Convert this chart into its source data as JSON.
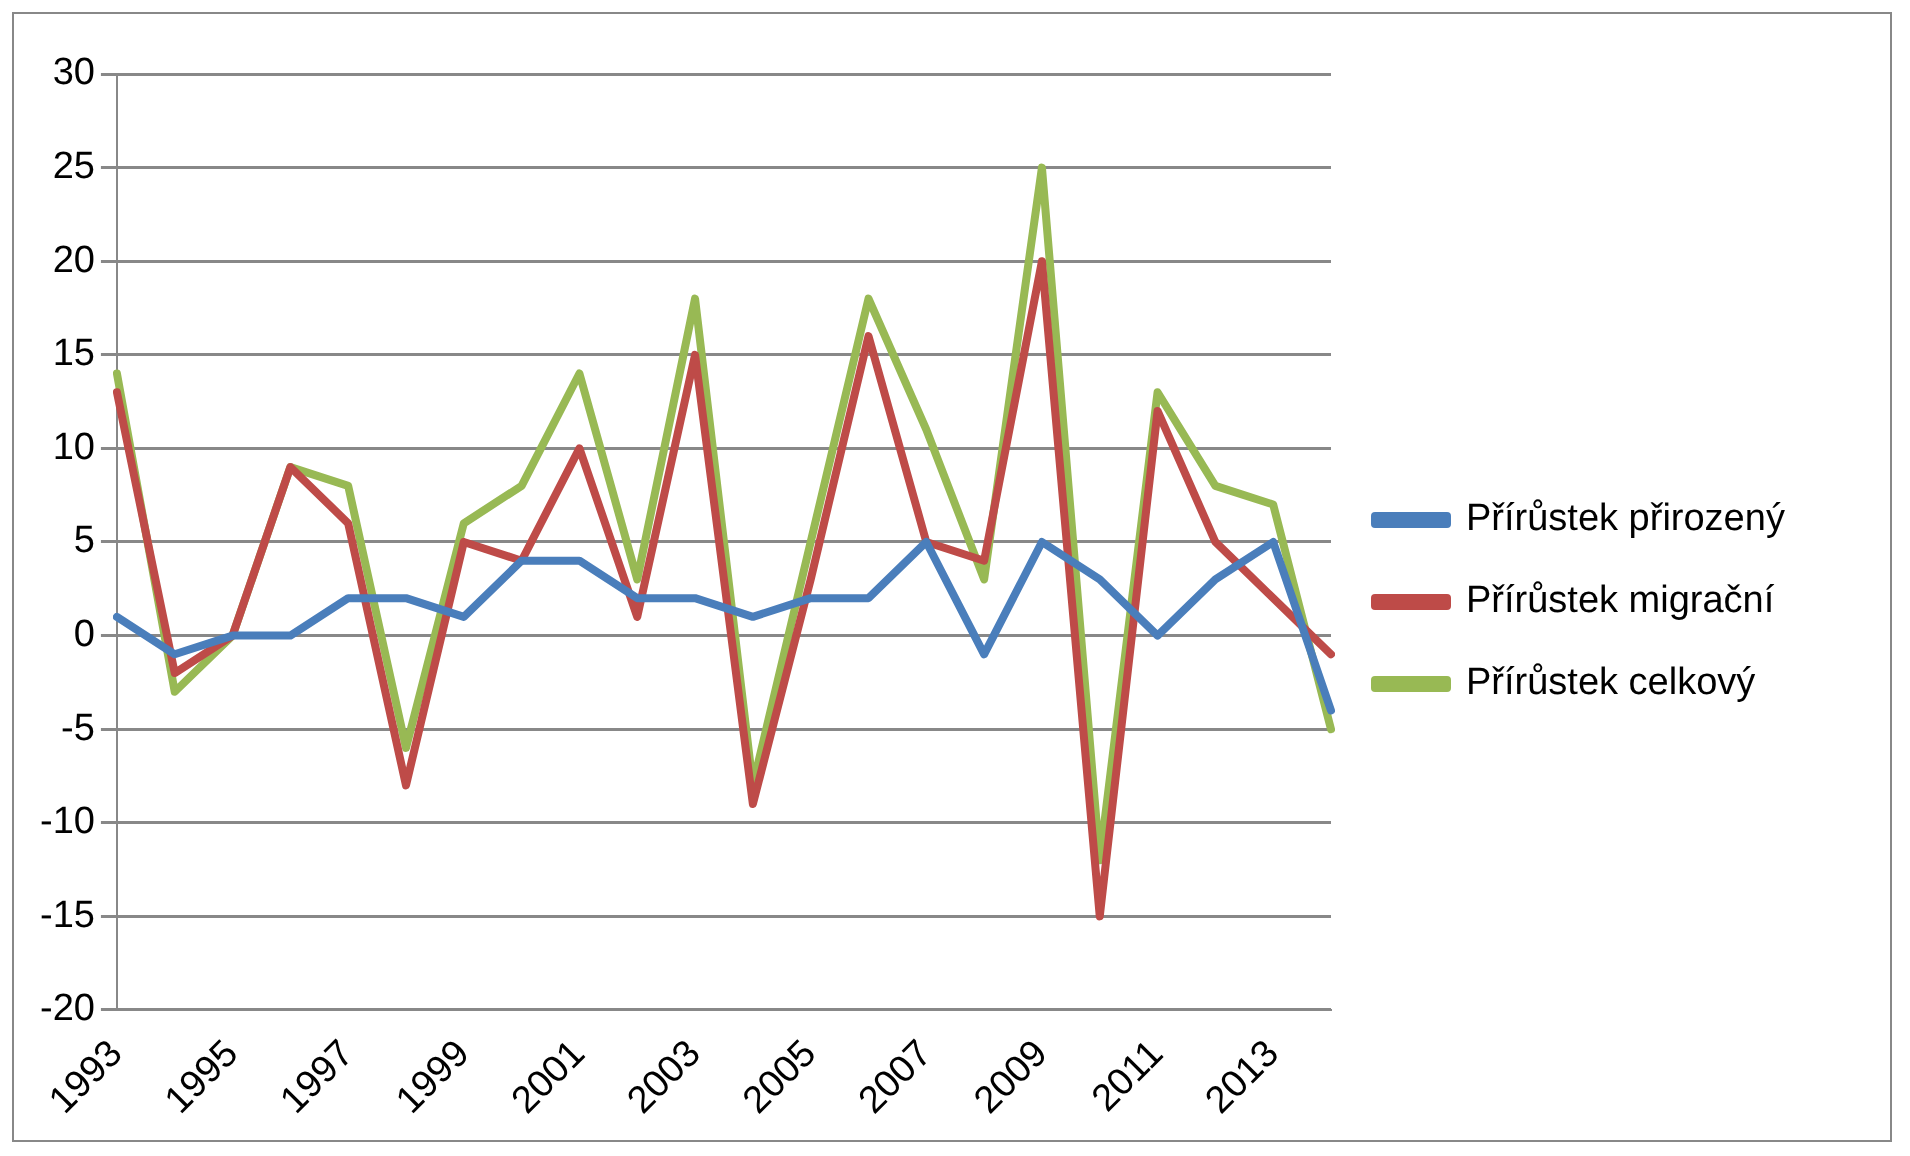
{
  "chart_data": {
    "type": "line",
    "categories": [
      "1993",
      null,
      "1995",
      null,
      "1997",
      null,
      "1999",
      null,
      "2001",
      null,
      "2003",
      null,
      "2005",
      null,
      "2007",
      null,
      "2009",
      null,
      "2011",
      null,
      "2013",
      null
    ],
    "series": [
      {
        "name": "Přírůstek přirozený",
        "color": "#4a7ebb",
        "values": [
          1,
          -1,
          0,
          0,
          2,
          2,
          1,
          4,
          4,
          2,
          2,
          1,
          2,
          2,
          5,
          -1,
          5,
          3,
          0,
          3,
          5,
          -4
        ]
      },
      {
        "name": "Přírůstek migrační",
        "color": "#be4b48",
        "values": [
          13,
          -2,
          0,
          9,
          6,
          -8,
          5,
          4,
          10,
          1,
          15,
          -9,
          3,
          16,
          5,
          4,
          20,
          -15,
          12,
          5,
          2,
          -1
        ]
      },
      {
        "name": "Přírůstek celkový",
        "color": "#98b954",
        "values": [
          14,
          -3,
          0,
          9,
          8,
          -6,
          6,
          8,
          14,
          3,
          18,
          -8,
          5,
          18,
          11,
          3,
          25,
          -12,
          13,
          8,
          7,
          -5
        ]
      }
    ],
    "ylim": [
      -20,
      30
    ],
    "yticks": [
      -20,
      -15,
      -10,
      -5,
      0,
      5,
      10,
      15,
      20,
      25,
      30
    ],
    "grid": "y",
    "legend": "right",
    "marker": "none",
    "line_style": "solid"
  }
}
